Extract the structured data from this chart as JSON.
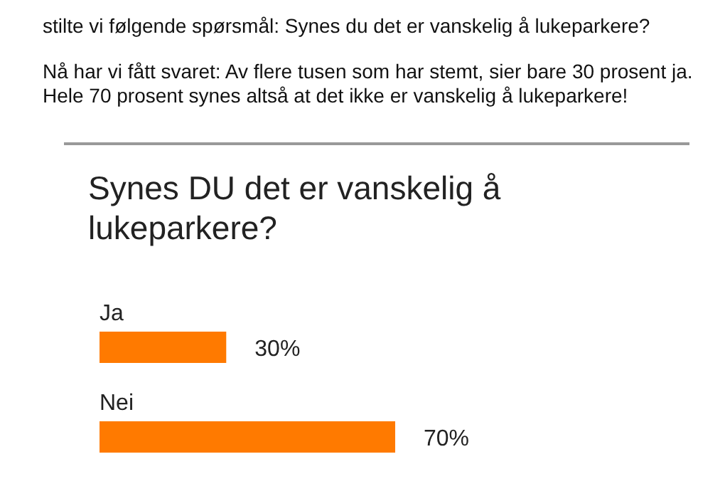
{
  "chart_data": {
    "type": "bar",
    "orientation": "horizontal",
    "title": "Synes DU det er vanskelig å lukeparkere?",
    "annotations": [
      "stilte vi følgende spørsmål: Synes du det er vanskelig å lukeparkere?",
      "Nå har vi fått svaret: Av flere tusen som har stemt, sier bare 30 prosent ja. Hele 70 prosent synes altså at det ikke er vanskelig å lukeparkere!"
    ],
    "categories": [
      "Ja",
      "Nei"
    ],
    "values": [
      30,
      70
    ],
    "value_labels": [
      "30%",
      "70%"
    ],
    "color": "#ff7a00"
  }
}
